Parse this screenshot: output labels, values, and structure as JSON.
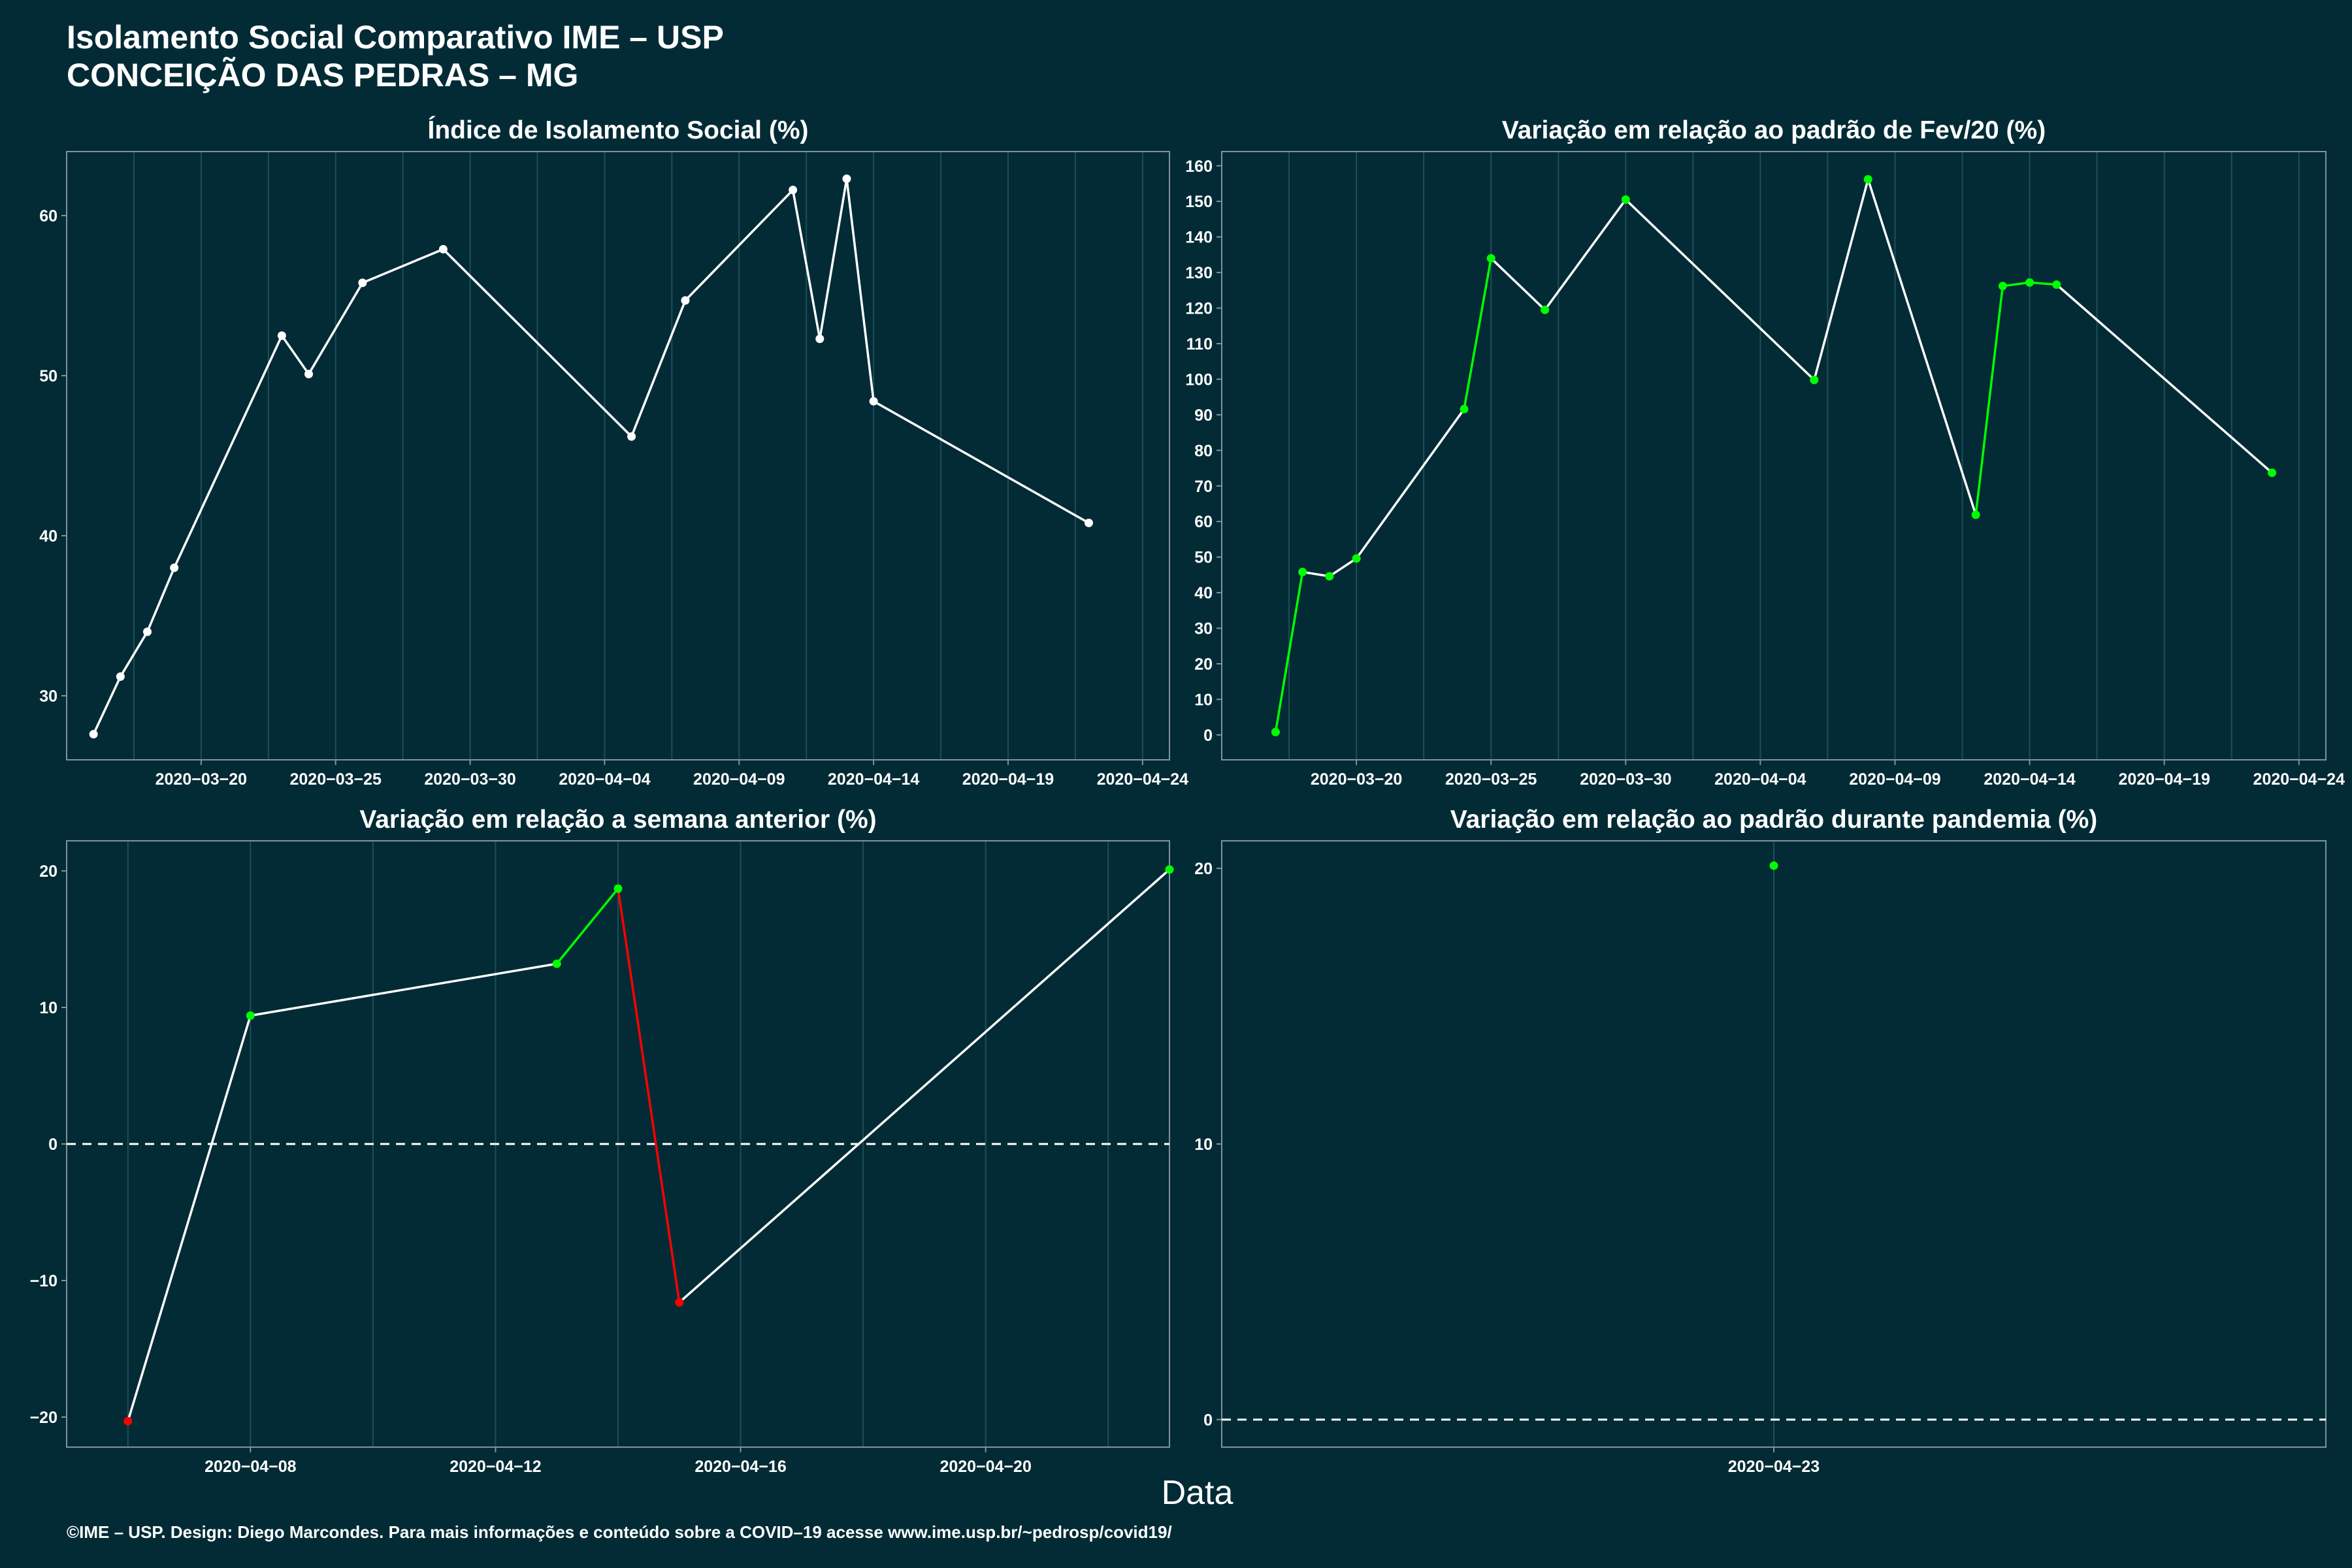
{
  "title": {
    "line1": "Isolamento Social Comparativo IME – USP",
    "line2": "CONCEIÇÃO DAS PEDRAS – MG"
  },
  "x_axis_title": "Data",
  "footer": "©IME – USP. Design: Diego Marcondes. Para mais informações e conteúdo sobre a COVID–19 acesse www.ime.usp.br/~pedrosp/covid19/",
  "colors": {
    "background": "#022b35",
    "neutral_line": "#ffffff",
    "increase": "#00ff00",
    "decrease": "#ff0000",
    "grid": "#1f4e57"
  },
  "chart_data": [
    {
      "type": "line",
      "title": "Índice de Isolamento Social (%)",
      "x_label_dates": [
        "2020-03-20",
        "2020-03-25",
        "2020-03-30",
        "2020-04-04",
        "2020-04-09",
        "2020-04-14",
        "2020-04-19",
        "2020-04-24"
      ],
      "y_ticks": [
        30,
        40,
        50,
        60
      ],
      "ylim": [
        26,
        64
      ],
      "xlim": [
        "2020-03-15",
        "2020-04-25"
      ],
      "points": [
        {
          "x": "2020-03-16",
          "y": 27.6
        },
        {
          "x": "2020-03-17",
          "y": 31.2
        },
        {
          "x": "2020-03-18",
          "y": 34.0
        },
        {
          "x": "2020-03-19",
          "y": 38.0
        },
        {
          "x": "2020-03-23",
          "y": 52.5
        },
        {
          "x": "2020-03-24",
          "y": 50.1
        },
        {
          "x": "2020-03-26",
          "y": 55.8
        },
        {
          "x": "2020-03-29",
          "y": 57.9
        },
        {
          "x": "2020-04-05",
          "y": 46.2
        },
        {
          "x": "2020-04-07",
          "y": 54.7
        },
        {
          "x": "2020-04-11",
          "y": 61.6
        },
        {
          "x": "2020-04-12",
          "y": 52.3
        },
        {
          "x": "2020-04-13",
          "y": 62.3
        },
        {
          "x": "2020-04-14",
          "y": 48.4
        },
        {
          "x": "2020-04-22",
          "y": 40.8
        }
      ]
    },
    {
      "type": "line",
      "title": "Variação em relação ao padrão de Fev/20 (%)",
      "x_label_dates": [
        "2020-03-20",
        "2020-03-25",
        "2020-03-30",
        "2020-04-04",
        "2020-04-09",
        "2020-04-14",
        "2020-04-19",
        "2020-04-24"
      ],
      "y_ticks": [
        0,
        10,
        20,
        30,
        40,
        50,
        60,
        70,
        80,
        90,
        100,
        110,
        120,
        130,
        140,
        150,
        160
      ],
      "ylim": [
        -7,
        164
      ],
      "xlim": [
        "2020-03-15",
        "2020-04-25"
      ],
      "points": [
        {
          "x": "2020-03-17",
          "y": 0.8,
          "c": "increase"
        },
        {
          "x": "2020-03-18",
          "y": 45.8,
          "c": "increase"
        },
        {
          "x": "2020-03-19",
          "y": 44.6,
          "c": "increase"
        },
        {
          "x": "2020-03-20",
          "y": 49.6,
          "c": "increase"
        },
        {
          "x": "2020-03-24",
          "y": 91.6,
          "c": "increase"
        },
        {
          "x": "2020-03-25",
          "y": 134.0,
          "c": "increase"
        },
        {
          "x": "2020-03-27",
          "y": 119.5,
          "c": "increase"
        },
        {
          "x": "2020-03-30",
          "y": 150.5,
          "c": "increase"
        },
        {
          "x": "2020-04-06",
          "y": 99.8,
          "c": "increase"
        },
        {
          "x": "2020-04-08",
          "y": 156.2,
          "c": "increase"
        },
        {
          "x": "2020-04-12",
          "y": 61.9,
          "c": "increase"
        },
        {
          "x": "2020-04-13",
          "y": 126.2,
          "c": "increase"
        },
        {
          "x": "2020-04-14",
          "y": 127.2,
          "c": "increase"
        },
        {
          "x": "2020-04-15",
          "y": 126.6,
          "c": "increase"
        },
        {
          "x": "2020-04-23",
          "y": 73.7,
          "c": "increase"
        }
      ],
      "segment_colors": [
        "increase",
        "neutral_line",
        "neutral_line",
        "neutral_line",
        "increase",
        "neutral_line",
        "neutral_line",
        "neutral_line",
        "neutral_line",
        "neutral_line",
        "increase",
        "increase",
        "increase",
        "neutral_line"
      ]
    },
    {
      "type": "line",
      "title": "Variação em relação a semana anterior (%)",
      "x_label_dates": [
        "2020-04-08",
        "2020-04-12",
        "2020-04-16",
        "2020-04-20"
      ],
      "y_ticks": [
        -20,
        -10,
        0,
        10,
        20
      ],
      "ylim": [
        -22.2,
        22.2
      ],
      "xlim": [
        "2020-04-05",
        "2020-04-23"
      ],
      "reference_line": 0,
      "points": [
        {
          "x": "2020-04-06",
          "y": -20.3,
          "c": "decrease"
        },
        {
          "x": "2020-04-08",
          "y": 9.4,
          "c": "increase"
        },
        {
          "x": "2020-04-13",
          "y": 13.2,
          "c": "increase"
        },
        {
          "x": "2020-04-14",
          "y": 18.7,
          "c": "increase"
        },
        {
          "x": "2020-04-15",
          "y": -11.6,
          "c": "decrease"
        },
        {
          "x": "2020-04-23",
          "y": 20.1,
          "c": "increase"
        }
      ],
      "segment_colors": [
        "neutral_line",
        "neutral_line",
        "increase",
        "decrease",
        "neutral_line"
      ]
    },
    {
      "type": "scatter",
      "title": "Variação em relação ao padrão durante pandemia (%)",
      "x_label_dates": [
        "2020-04-23"
      ],
      "y_ticks": [
        0,
        10,
        20
      ],
      "ylim": [
        -1,
        21
      ],
      "xlim": [
        "2020-04-22",
        "2020-04-24"
      ],
      "reference_line": 0,
      "points": [
        {
          "x": "2020-04-23",
          "y": 20.1,
          "c": "increase"
        }
      ]
    }
  ]
}
